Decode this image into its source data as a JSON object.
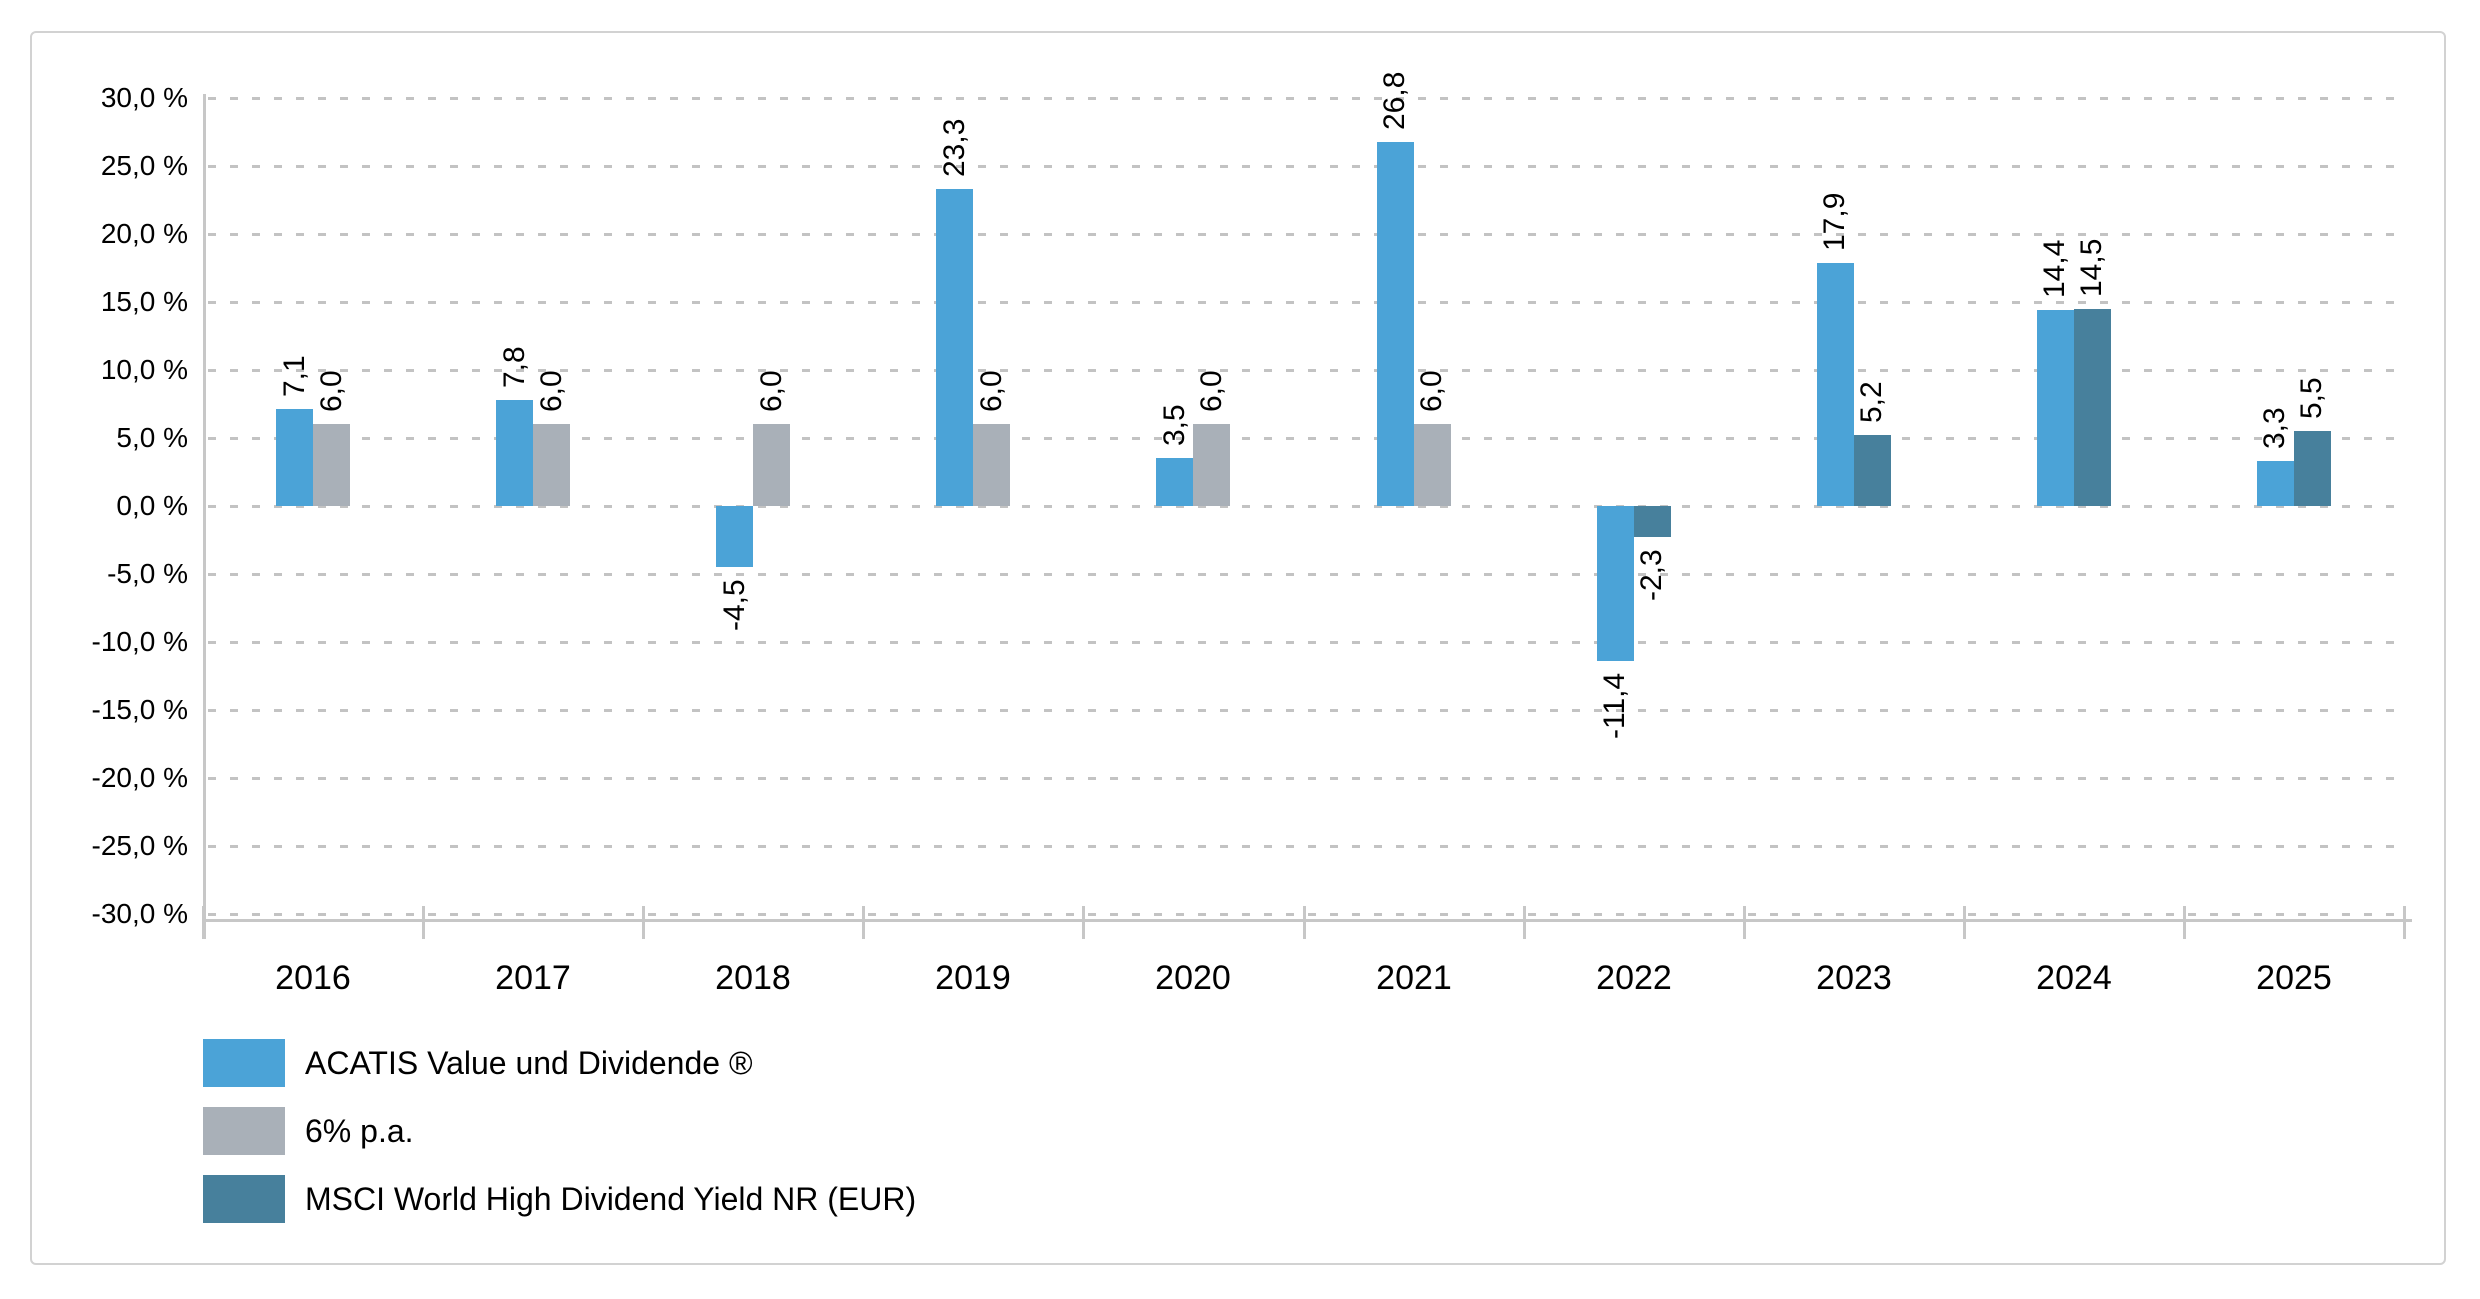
{
  "chart_data": {
    "type": "bar",
    "title": "",
    "categories": [
      "2016",
      "2017",
      "2018",
      "2019",
      "2020",
      "2021",
      "2022",
      "2023",
      "2024",
      "2025"
    ],
    "series": [
      {
        "name": "ACATIS Value und Dividende ®",
        "color": "#4BA3D7",
        "values": [
          7.1,
          7.8,
          -4.5,
          23.3,
          3.5,
          26.8,
          -11.4,
          17.9,
          14.4,
          3.3
        ],
        "labels": [
          "7,1",
          "7,8",
          "-4,5",
          "23,3",
          "3,5",
          "26,8",
          "-11,4",
          "17,9",
          "14,4",
          "3,3"
        ]
      },
      {
        "name": "6% p.a.",
        "color": "#A9B0B8",
        "values": [
          6.0,
          6.0,
          6.0,
          6.0,
          6.0,
          6.0,
          null,
          null,
          null,
          null
        ],
        "labels": [
          "6,0",
          "6,0",
          "6,0",
          "6,0",
          "6,0",
          "6,0",
          null,
          null,
          null,
          null
        ]
      },
      {
        "name": "MSCI World High Dividend Yield NR (EUR)",
        "color": "#47809C",
        "values": [
          null,
          null,
          null,
          null,
          null,
          null,
          -2.3,
          5.2,
          14.5,
          5.5
        ],
        "labels": [
          null,
          null,
          null,
          null,
          null,
          null,
          "-2,3",
          "5,2",
          "14,5",
          "5,5"
        ]
      }
    ],
    "ylim": [
      -30,
      30
    ],
    "y_tick_step": 5,
    "y_unit": "%",
    "y_tick_labels": [
      "30,0 %",
      "25,0 %",
      "20,0 %",
      "15,0 %",
      "10,0 %",
      "5,0 %",
      "0,0 %",
      "-5,0 %",
      "-10,0 %",
      "-15,0 %",
      "-20,0 %",
      "-25,0 %",
      "-30,0 %"
    ],
    "y_tick_values": [
      30,
      25,
      20,
      15,
      10,
      5,
      0,
      -5,
      -10,
      -15,
      -20,
      -25,
      -30
    ],
    "grid": "dashed horizontal gridlines",
    "value_label_rotation": -90,
    "legend_position": "bottom-left",
    "legend": [
      {
        "label": "ACATIS Value und Dividende ®",
        "color": "#4BA3D7"
      },
      {
        "label": "6% p.a.",
        "color": "#A9B0B8"
      },
      {
        "label": "MSCI World High Dividend Yield NR (EUR)",
        "color": "#47809C"
      }
    ]
  },
  "style_colors": {
    "axis": "#c7c7c7",
    "gridline": "#c3c3c3",
    "card_border": "#d2d2d2",
    "text": "#000000",
    "background": "#ffffff"
  }
}
